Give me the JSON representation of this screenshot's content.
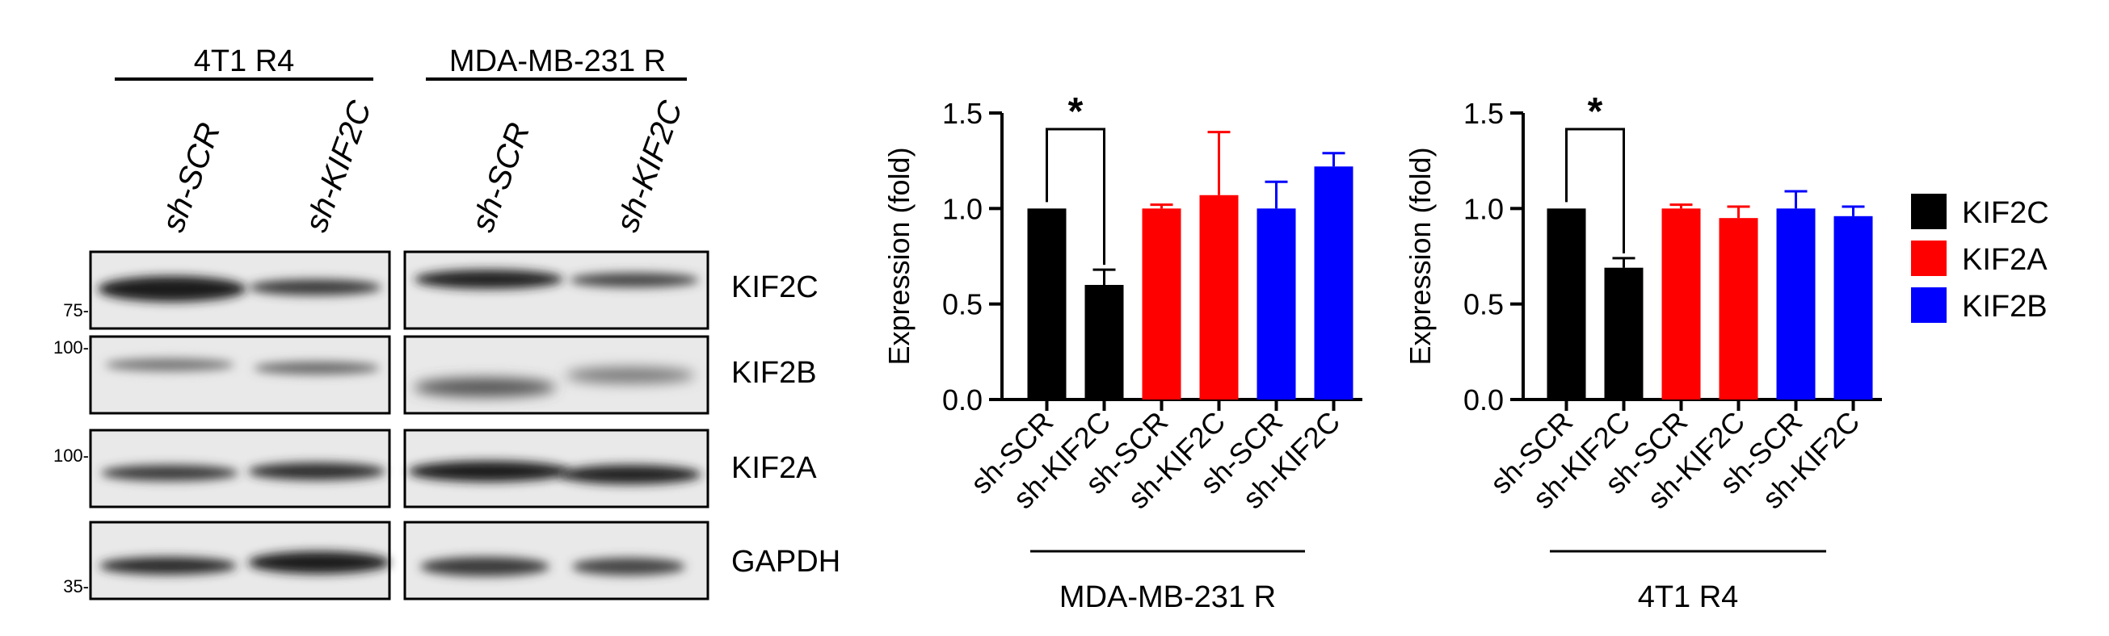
{
  "blot": {
    "groups": [
      {
        "label": "4T1 R4",
        "lanes": [
          "sh-SCR",
          "sh-KIF2C"
        ]
      },
      {
        "label": "MDA-MB-231 R",
        "lanes": [
          "sh-SCR",
          "sh-KIF2C"
        ]
      }
    ],
    "rows": [
      {
        "label": "KIF2C",
        "marker": "75-"
      },
      {
        "label": "KIF2B",
        "marker": "100-"
      },
      {
        "label": "KIF2A",
        "marker": "100-"
      },
      {
        "label": "GAPDH",
        "marker": "35-"
      }
    ]
  },
  "legend": [
    {
      "label": "KIF2C",
      "color": "#000000"
    },
    {
      "label": "KIF2A",
      "color": "#ff0000"
    },
    {
      "label": "KIF2B",
      "color": "#0000ff"
    }
  ],
  "chart_data": [
    {
      "type": "bar",
      "ylabel": "Expression (fold)",
      "ylim": [
        0,
        1.5
      ],
      "yticks": [
        0.0,
        0.5,
        1.0,
        1.5
      ],
      "ytick_labels": [
        "0.0",
        "0.5",
        "1.0",
        "1.5"
      ],
      "categories": [
        "sh-SCR",
        "sh-KIF2C",
        "sh-SCR",
        "sh-KIF2C",
        "sh-SCR",
        "sh-KIF2C"
      ],
      "values": [
        1.0,
        0.6,
        1.0,
        1.07,
        1.0,
        1.22
      ],
      "errors": [
        0,
        0.08,
        0.02,
        0.33,
        0.14,
        0.07
      ],
      "colors": [
        "#000000",
        "#000000",
        "#ff0000",
        "#ff0000",
        "#0000ff",
        "#0000ff"
      ],
      "group_label": "MDA-MB-231 R",
      "significance": {
        "from": 0,
        "to": 1,
        "label": "*"
      }
    },
    {
      "type": "bar",
      "ylabel": "Expression (fold)",
      "ylim": [
        0,
        1.5
      ],
      "yticks": [
        0.0,
        0.5,
        1.0,
        1.5
      ],
      "ytick_labels": [
        "0.0",
        "0.5",
        "1.0",
        "1.5"
      ],
      "categories": [
        "sh-SCR",
        "sh-KIF2C",
        "sh-SCR",
        "sh-KIF2C",
        "sh-SCR",
        "sh-KIF2C"
      ],
      "values": [
        1.0,
        0.69,
        1.0,
        0.95,
        1.0,
        0.96
      ],
      "errors": [
        0,
        0.05,
        0.02,
        0.06,
        0.09,
        0.05
      ],
      "colors": [
        "#000000",
        "#000000",
        "#ff0000",
        "#ff0000",
        "#0000ff",
        "#0000ff"
      ],
      "group_label": "4T1 R4",
      "significance": {
        "from": 0,
        "to": 1,
        "label": "*"
      }
    }
  ]
}
